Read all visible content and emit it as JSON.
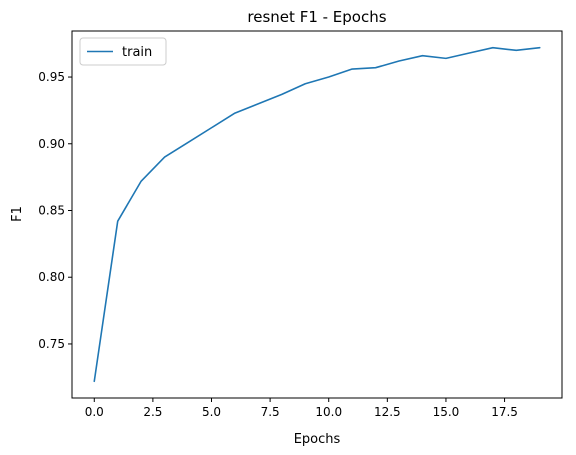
{
  "chart_data": {
    "type": "line",
    "title": "resnet F1 - Epochs",
    "xlabel": "Epochs",
    "ylabel": "F1",
    "xlim": [
      -0.95,
      19.95
    ],
    "ylim": [
      0.7095,
      0.9845
    ],
    "xticks": [
      0.0,
      2.5,
      5.0,
      7.5,
      10.0,
      12.5,
      15.0,
      17.5
    ],
    "xtick_labels": [
      "0.0",
      "2.5",
      "5.0",
      "7.5",
      "10.0",
      "12.5",
      "15.0",
      "17.5"
    ],
    "yticks": [
      0.75,
      0.8,
      0.85,
      0.9,
      0.95
    ],
    "ytick_labels": [
      "0.75",
      "0.80",
      "0.85",
      "0.90",
      "0.95"
    ],
    "grid": false,
    "legend": {
      "position": "top-left"
    },
    "series": [
      {
        "name": "train",
        "color": "#1f77b4",
        "x": [
          0,
          1,
          2,
          3,
          4,
          5,
          6,
          7,
          8,
          9,
          10,
          11,
          12,
          13,
          14,
          15,
          16,
          17,
          18,
          19
        ],
        "values": [
          0.722,
          0.842,
          0.872,
          0.89,
          0.901,
          0.912,
          0.923,
          0.93,
          0.937,
          0.945,
          0.95,
          0.956,
          0.957,
          0.962,
          0.966,
          0.964,
          0.968,
          0.972,
          0.97,
          0.972
        ]
      }
    ]
  }
}
